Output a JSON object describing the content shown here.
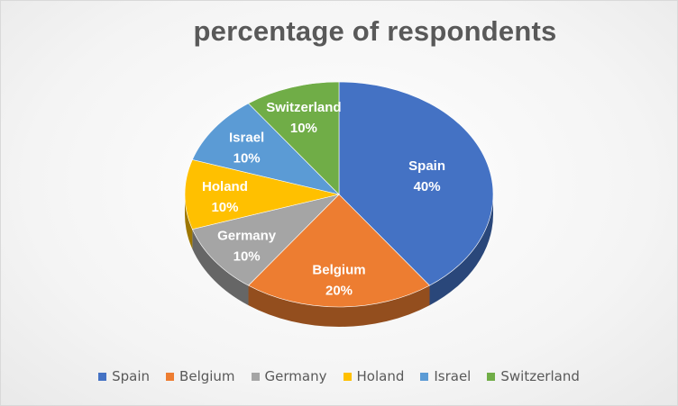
{
  "chart_data": {
    "type": "pie",
    "title": "percentage of respondents",
    "categories": [
      "Spain",
      "Belgium",
      "Germany",
      "Holand",
      "Israel",
      "Switzerland"
    ],
    "values": [
      40,
      20,
      10,
      10,
      10,
      10
    ],
    "data_labels": [
      "40%",
      "20%",
      "10%",
      "10%",
      "10%",
      "10%"
    ],
    "colors": [
      "#4472C4",
      "#ED7D31",
      "#A5A5A5",
      "#FFC000",
      "#5B9BD5",
      "#70AD47"
    ],
    "style": "3d-pie",
    "legend_position": "bottom"
  }
}
